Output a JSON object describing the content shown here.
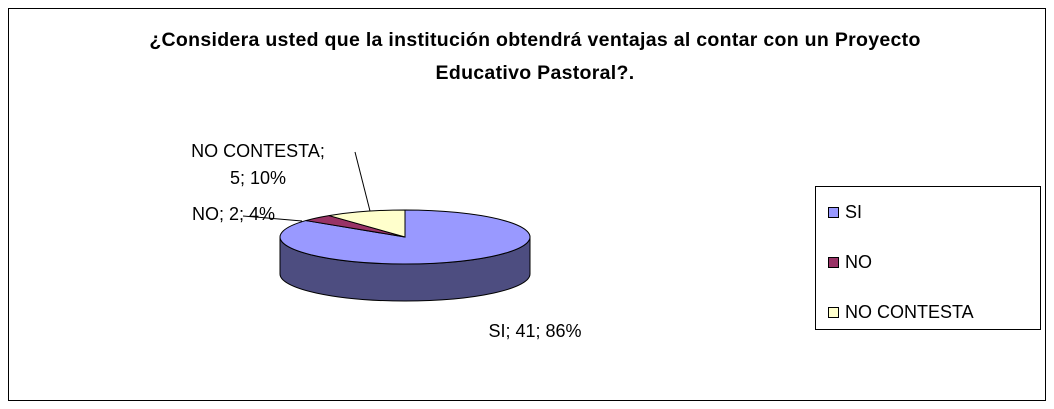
{
  "chart_data": {
    "type": "pie3d",
    "title": "¿Considera usted que la institución obtendrá ventajas al contar con un Proyecto Educativo Pastoral?.",
    "categories": [
      "SI",
      "NO",
      "NO CONTESTA"
    ],
    "values": [
      41,
      2,
      5
    ],
    "value_labels": [
      "SI; 41; 86%",
      "NO; 2; 4%",
      "NO CONTESTA; 5; 10%"
    ],
    "colors": [
      "#9999ff",
      "#993366",
      "#ffffcc"
    ],
    "legend": "right"
  }
}
